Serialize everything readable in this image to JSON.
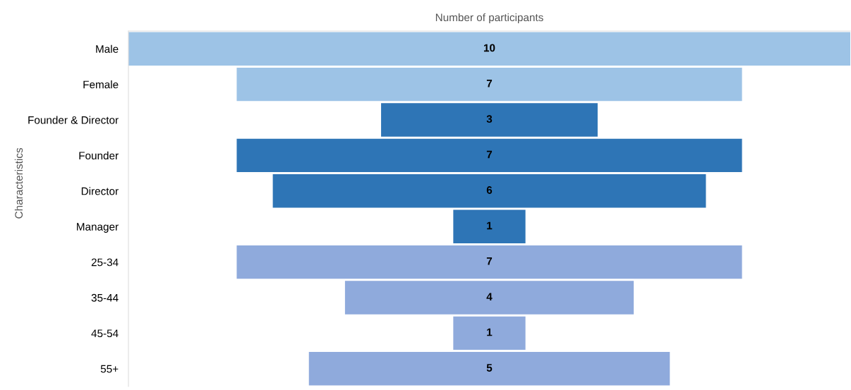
{
  "chart_data": {
    "type": "other",
    "title": "Number of participants",
    "ylabel": "Characteristics",
    "categories": [
      "Male",
      "Female",
      "Founder & Director",
      "Founder",
      "Director",
      "Manager",
      "25-34",
      "35-44",
      "45-54",
      "55+"
    ],
    "values": [
      10,
      7,
      3,
      7,
      6,
      1,
      7,
      4,
      1,
      5
    ],
    "colors": [
      "#9dc3e6",
      "#9dc3e6",
      "#2e75b6",
      "#2e75b6",
      "#2e75b6",
      "#2e75b6",
      "#8faadc",
      "#8faadc",
      "#8faadc",
      "#8faadc"
    ],
    "data_labels": true
  }
}
